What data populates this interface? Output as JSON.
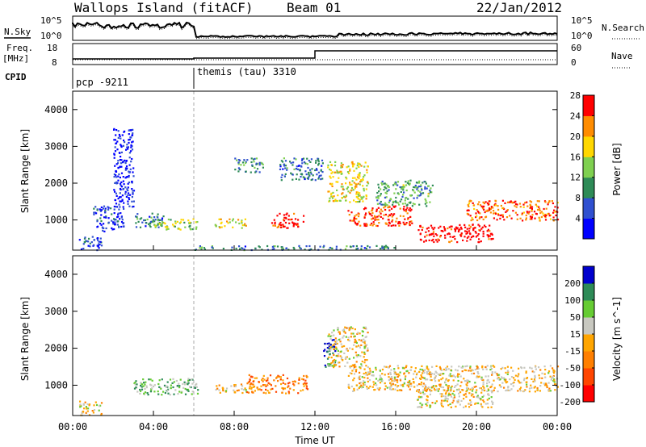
{
  "header": {
    "station": "Wallops Island (fitACF)",
    "beam": "Beam 01",
    "date": "22/Jan/2012"
  },
  "noise_panel": {
    "left_label": "N.Sky",
    "left_ticks": [
      "10^5",
      "10^0"
    ],
    "right_label": "N.Search",
    "right_ticks": [
      "10^5",
      "10^0"
    ]
  },
  "freq_panel": {
    "left_label_line1": "Freq.",
    "left_label_line2": "[MHz]",
    "left_ticks": [
      "18",
      "8"
    ],
    "right_label": "Nave",
    "right_ticks": [
      "60",
      "0"
    ]
  },
  "cpid_panel": {
    "label": "CPID",
    "segments": [
      {
        "name": "pcp -9211",
        "start_hour": 0
      },
      {
        "name": "themis (tau) 3310",
        "start_hour": 6
      }
    ]
  },
  "x_axis": {
    "label": "Time UT",
    "ticks": [
      "00:00",
      "04:00",
      "08:00",
      "12:00",
      "16:00",
      "20:00",
      "00:00"
    ]
  },
  "chart_data": [
    {
      "type": "heatmap",
      "name": "power",
      "xlabel": "Time UT",
      "ylabel": "Slant Range [km]",
      "xlim": [
        0,
        24
      ],
      "ylim": [
        180,
        4500
      ],
      "yticks": [
        1000,
        2000,
        3000,
        4000
      ],
      "colorbar": {
        "label": "Power [dB]",
        "ticks": [
          "4",
          "8",
          "12",
          "16",
          "20",
          "24",
          "28"
        ],
        "colors": [
          "#0000ff",
          "#3050d0",
          "#2e8b57",
          "#7fd050",
          "#ffd700",
          "#ff8c00",
          "#ff0000"
        ]
      },
      "regions": [
        {
          "t": [
            0.3,
            1.4
          ],
          "r": [
            200,
            600
          ],
          "level": 0.2
        },
        {
          "t": [
            1.0,
            2.5
          ],
          "r": [
            700,
            1400
          ],
          "level": 0.15
        },
        {
          "t": [
            2.0,
            3.0
          ],
          "r": [
            1300,
            3500
          ],
          "level": 0.1
        },
        {
          "t": [
            3.0,
            4.5
          ],
          "r": [
            800,
            1200
          ],
          "level": 0.3
        },
        {
          "t": [
            4.0,
            6.2
          ],
          "r": [
            750,
            1050
          ],
          "level": 0.55
        },
        {
          "t": [
            7.0,
            8.6
          ],
          "r": [
            800,
            1050
          ],
          "level": 0.6
        },
        {
          "t": [
            9.8,
            11.4
          ],
          "r": [
            800,
            1200
          ],
          "level": 0.95
        },
        {
          "t": [
            8.0,
            9.4
          ],
          "r": [
            2300,
            2700
          ],
          "level": 0.35
        },
        {
          "t": [
            10.2,
            12.4
          ],
          "r": [
            2100,
            2700
          ],
          "level": 0.3
        },
        {
          "t": [
            12.6,
            14.6
          ],
          "r": [
            1500,
            2600
          ],
          "level": 0.6
        },
        {
          "t": [
            13.6,
            16.8
          ],
          "r": [
            850,
            1400
          ],
          "level": 0.9
        },
        {
          "t": [
            15.0,
            17.8
          ],
          "r": [
            1400,
            2100
          ],
          "level": 0.4
        },
        {
          "t": [
            17.0,
            20.8
          ],
          "r": [
            420,
            900
          ],
          "level": 1.0
        },
        {
          "t": [
            19.5,
            24.0
          ],
          "r": [
            1000,
            1550
          ],
          "level": 0.85
        },
        {
          "t": [
            6.0,
            16.0
          ],
          "r": [
            200,
            320
          ],
          "level": 0.3
        }
      ]
    },
    {
      "type": "heatmap",
      "name": "velocity",
      "xlabel": "Time UT",
      "ylabel": "Slant Range [km]",
      "xlim": [
        0,
        24
      ],
      "ylim": [
        180,
        4500
      ],
      "yticks": [
        1000,
        2000,
        3000,
        4000
      ],
      "colorbar": {
        "label": "Velocity [m s^-1]",
        "ticks": [
          "200",
          "100",
          "50",
          "15",
          "-15",
          "-50",
          "-100",
          "-200"
        ],
        "colors": [
          "#0000cd",
          "#2e8b57",
          "#66cc33",
          "#c8c8c0",
          "#ffa500",
          "#ff7f00",
          "#ff4500",
          "#ff0000"
        ]
      },
      "regions": [
        {
          "t": [
            0.3,
            1.4
          ],
          "r": [
            200,
            600
          ],
          "level": 0.5
        },
        {
          "t": [
            3.0,
            6.2
          ],
          "r": [
            750,
            1200
          ],
          "level": 0.3
        },
        {
          "t": [
            7.0,
            8.6
          ],
          "r": [
            800,
            1050
          ],
          "level": 0.5
        },
        {
          "t": [
            8.6,
            11.6
          ],
          "r": [
            800,
            1300
          ],
          "level": 0.7
        },
        {
          "t": [
            12.4,
            13.0
          ],
          "r": [
            1500,
            2300
          ],
          "level": 0.1
        },
        {
          "t": [
            12.6,
            14.6
          ],
          "r": [
            1500,
            2600
          ],
          "level": 0.5
        },
        {
          "t": [
            13.6,
            24.0
          ],
          "r": [
            850,
            1550
          ],
          "level": 0.5
        },
        {
          "t": [
            17.0,
            20.8
          ],
          "r": [
            420,
            900
          ],
          "level": 0.5
        }
      ]
    }
  ],
  "colors": {
    "axis": "#000000",
    "cpid_divider": "#aaaaaa"
  }
}
